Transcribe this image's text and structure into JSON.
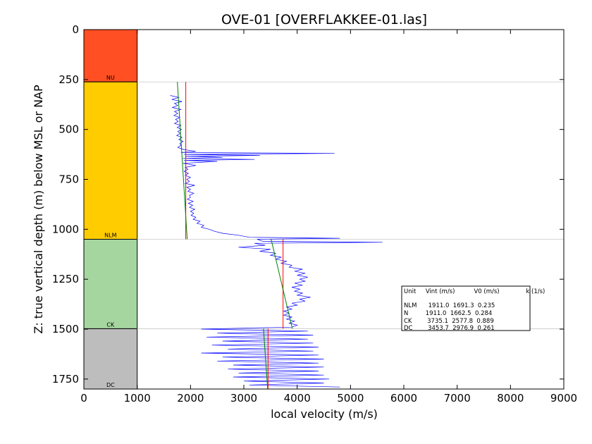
{
  "chart_data": {
    "type": "line",
    "title": "OVE-01 [OVERFLAKKEE-01.las]",
    "xlabel": "local velocity (m/s)",
    "ylabel": "Z: true vertical depth (m) below MSL or NAP",
    "xlim": [
      0,
      9000
    ],
    "ylim": [
      1800,
      0
    ],
    "x_ticks": [
      0,
      1000,
      2000,
      3000,
      4000,
      5000,
      6000,
      7000,
      8000,
      9000
    ],
    "y_ticks": [
      0,
      250,
      500,
      750,
      1000,
      1250,
      1500,
      1750
    ],
    "units": [
      {
        "name": "NU",
        "top": 0,
        "base": 262,
        "color": "#ff4f23"
      },
      {
        "name": "NLM",
        "top": 262,
        "base": 1050,
        "color": "#ffcc00"
      },
      {
        "name": "CK",
        "top": 1050,
        "base": 1498,
        "color": "#a6d6a0"
      },
      {
        "name": "DC",
        "top": 1498,
        "base": 1800,
        "color": "#bdbdbd"
      }
    ],
    "unit_column_x": [
      0,
      1000
    ],
    "boundary_depths": [
      262,
      1050,
      1498
    ],
    "velocity_log_color": "#0000ff",
    "vint_color": "#ff0000",
    "fit_color": "#008000",
    "vint_segments": [
      {
        "unit": "NLM",
        "top": 262,
        "base": 1050,
        "vint": 1911.0
      },
      {
        "unit": "CK",
        "top": 1050,
        "base": 1498,
        "vint": 3735.1
      },
      {
        "unit": "DC",
        "top": 1498,
        "base": 1800,
        "vint": 3453.7
      }
    ],
    "fit_segments": [
      {
        "unit": "NLM",
        "v0": 1691.3,
        "k": 0.235,
        "top": 262,
        "base": 1050
      },
      {
        "unit": "CK",
        "v0": 2577.8,
        "k": 0.889,
        "top": 1050,
        "base": 1498
      },
      {
        "unit": "DC",
        "v0": 2976.9,
        "k": 0.261,
        "top": 1498,
        "base": 1800
      }
    ],
    "velocity_log": [
      [
        330,
        1620
      ],
      [
        340,
        1780
      ],
      [
        350,
        1650
      ],
      [
        360,
        1840
      ],
      [
        370,
        1700
      ],
      [
        380,
        1760
      ],
      [
        390,
        1660
      ],
      [
        400,
        1820
      ],
      [
        410,
        1700
      ],
      [
        420,
        1760
      ],
      [
        430,
        1690
      ],
      [
        440,
        1800
      ],
      [
        450,
        1720
      ],
      [
        460,
        1770
      ],
      [
        470,
        1700
      ],
      [
        480,
        1820
      ],
      [
        490,
        1750
      ],
      [
        500,
        1830
      ],
      [
        510,
        1760
      ],
      [
        520,
        1810
      ],
      [
        530,
        1740
      ],
      [
        540,
        1840
      ],
      [
        550,
        1780
      ],
      [
        560,
        1860
      ],
      [
        570,
        1800
      ],
      [
        580,
        1820
      ],
      [
        590,
        1760
      ],
      [
        600,
        1860
      ],
      [
        610,
        2100
      ],
      [
        615,
        1820
      ],
      [
        620,
        4700
      ],
      [
        625,
        1880
      ],
      [
        630,
        3300
      ],
      [
        635,
        1900
      ],
      [
        640,
        2600
      ],
      [
        645,
        1860
      ],
      [
        650,
        3200
      ],
      [
        655,
        1880
      ],
      [
        660,
        2500
      ],
      [
        670,
        1860
      ],
      [
        680,
        2100
      ],
      [
        690,
        1900
      ],
      [
        700,
        1950
      ],
      [
        710,
        1880
      ],
      [
        720,
        1960
      ],
      [
        730,
        1900
      ],
      [
        740,
        2000
      ],
      [
        750,
        1930
      ],
      [
        760,
        1980
      ],
      [
        770,
        1900
      ],
      [
        780,
        2080
      ],
      [
        790,
        1930
      ],
      [
        800,
        2000
      ],
      [
        810,
        1950
      ],
      [
        820,
        2060
      ],
      [
        830,
        1980
      ],
      [
        840,
        2000
      ],
      [
        850,
        1940
      ],
      [
        860,
        2050
      ],
      [
        870,
        1960
      ],
      [
        880,
        2040
      ],
      [
        890,
        1980
      ],
      [
        900,
        2080
      ],
      [
        910,
        2000
      ],
      [
        920,
        2060
      ],
      [
        930,
        2010
      ],
      [
        940,
        2100
      ],
      [
        950,
        2050
      ],
      [
        960,
        2180
      ],
      [
        970,
        2120
      ],
      [
        980,
        2250
      ],
      [
        990,
        2200
      ],
      [
        1000,
        2350
      ],
      [
        1010,
        2450
      ],
      [
        1020,
        2600
      ],
      [
        1030,
        2900
      ],
      [
        1040,
        3100
      ],
      [
        1045,
        4800
      ],
      [
        1050,
        3250
      ],
      [
        1060,
        3350
      ],
      [
        1065,
        5600
      ],
      [
        1070,
        3200
      ],
      [
        1080,
        3400
      ],
      [
        1090,
        2900
      ],
      [
        1100,
        3500
      ],
      [
        1110,
        3300
      ],
      [
        1120,
        3600
      ],
      [
        1130,
        3500
      ],
      [
        1140,
        3700
      ],
      [
        1150,
        3600
      ],
      [
        1160,
        3800
      ],
      [
        1170,
        3700
      ],
      [
        1180,
        3900
      ],
      [
        1190,
        3850
      ],
      [
        1200,
        4100
      ],
      [
        1210,
        3950
      ],
      [
        1220,
        4150
      ],
      [
        1230,
        4000
      ],
      [
        1240,
        4200
      ],
      [
        1250,
        4050
      ],
      [
        1260,
        4150
      ],
      [
        1270,
        3950
      ],
      [
        1280,
        4100
      ],
      [
        1290,
        3900
      ],
      [
        1300,
        4050
      ],
      [
        1310,
        3950
      ],
      [
        1320,
        4100
      ],
      [
        1330,
        4000
      ],
      [
        1340,
        4250
      ],
      [
        1350,
        4050
      ],
      [
        1360,
        4150
      ],
      [
        1370,
        3900
      ],
      [
        1380,
        4000
      ],
      [
        1390,
        3800
      ],
      [
        1400,
        3900
      ],
      [
        1410,
        3750
      ],
      [
        1420,
        3850
      ],
      [
        1430,
        3750
      ],
      [
        1440,
        3900
      ],
      [
        1450,
        3800
      ],
      [
        1460,
        3950
      ],
      [
        1470,
        3850
      ],
      [
        1480,
        4000
      ],
      [
        1490,
        3900
      ],
      [
        1500,
        2200
      ],
      [
        1510,
        4200
      ],
      [
        1520,
        2500
      ],
      [
        1530,
        4300
      ],
      [
        1540,
        2300
      ],
      [
        1550,
        4200
      ],
      [
        1560,
        2600
      ],
      [
        1570,
        4300
      ],
      [
        1580,
        2400
      ],
      [
        1590,
        4400
      ],
      [
        1600,
        2700
      ],
      [
        1610,
        4300
      ],
      [
        1620,
        2200
      ],
      [
        1630,
        4400
      ],
      [
        1640,
        2600
      ],
      [
        1650,
        4500
      ],
      [
        1660,
        2500
      ],
      [
        1670,
        4400
      ],
      [
        1680,
        2800
      ],
      [
        1690,
        4500
      ],
      [
        1700,
        2700
      ],
      [
        1710,
        4400
      ],
      [
        1720,
        2900
      ],
      [
        1730,
        4500
      ],
      [
        1740,
        2800
      ],
      [
        1750,
        4600
      ],
      [
        1760,
        3000
      ],
      [
        1770,
        4500
      ],
      [
        1780,
        3100
      ],
      [
        1790,
        4800
      ]
    ],
    "legend": {
      "header": "Unit     Vint (m/s)          V0 (m/s)              k (1/s)",
      "rows": [
        "NLM      1911.0  1691.3  0.235",
        "N         1911.0  1662.5  0.284",
        "CK        3735.1  2577.8  0.889",
        "DC        3453.7  2976.9  0.261"
      ],
      "placement": "lower-right"
    }
  }
}
